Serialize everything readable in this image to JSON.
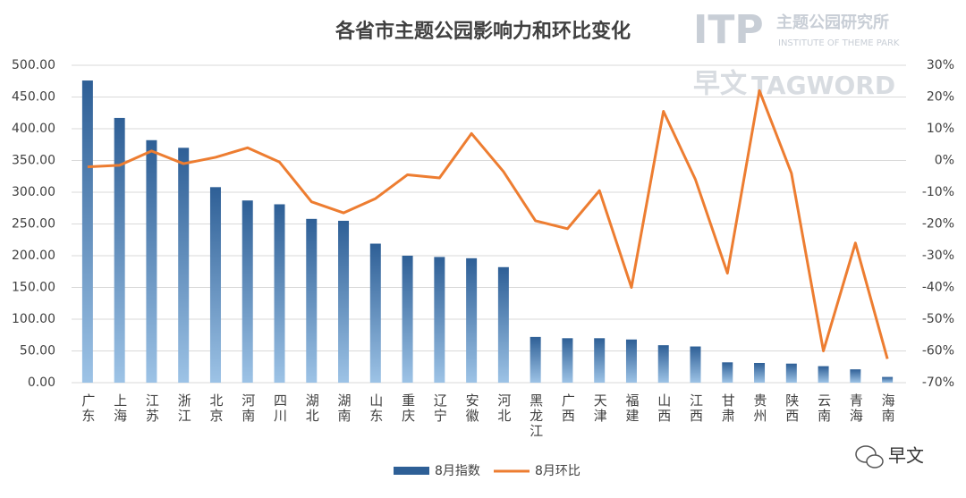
{
  "chart_data": {
    "type": "bar-line",
    "title": "各省市主题公园影响力和环比变化",
    "categories": [
      "广东",
      "上海",
      "江苏",
      "浙江",
      "北京",
      "河南",
      "四川",
      "湖北",
      "湖南",
      "山东",
      "重庆",
      "辽宁",
      "安徽",
      "河北",
      "黑龙江",
      "广西",
      "天津",
      "福建",
      "山西",
      "江西",
      "甘肃",
      "贵州",
      "陕西",
      "云南",
      "青海",
      "海南"
    ],
    "series": [
      {
        "name": "8月指数",
        "color": "#2e5f96",
        "color_light": "#9dc3e6",
        "type": "bar",
        "values": [
          476,
          417,
          382,
          370,
          308,
          287,
          281,
          258,
          255,
          219,
          200,
          198,
          196,
          182,
          72,
          70,
          70,
          68,
          59,
          57,
          32,
          31,
          30,
          26,
          21,
          9
        ]
      },
      {
        "name": "8月环比",
        "color": "#ed7d31",
        "type": "line",
        "axis": "y2",
        "values": [
          -2,
          -1.5,
          3,
          -1,
          1,
          4,
          -0.5,
          -13,
          -16.5,
          -12,
          -4.5,
          -5.5,
          8.5,
          -3.5,
          -19,
          -21.5,
          -9.5,
          -40,
          15.5,
          -6,
          -35.5,
          22,
          -4,
          -60,
          -26,
          -62.5
        ]
      }
    ],
    "ylim": [
      0,
      500
    ],
    "yticks": [
      {
        "value": 0,
        "label": "0.00"
      },
      {
        "value": 50,
        "label": "50.00"
      },
      {
        "value": 100,
        "label": "100.00"
      },
      {
        "value": 150,
        "label": "150.00"
      },
      {
        "value": 200,
        "label": "200.00"
      },
      {
        "value": 250,
        "label": "250.00"
      },
      {
        "value": 300,
        "label": "300.00"
      },
      {
        "value": 350,
        "label": "350.00"
      },
      {
        "value": 400,
        "label": "400.00"
      },
      {
        "value": 450,
        "label": "450.00"
      },
      {
        "value": 500,
        "label": "500.00"
      }
    ],
    "y2lim": [
      -70,
      30
    ],
    "y2ticks": [
      {
        "value": -70,
        "label": "-70%"
      },
      {
        "value": -60,
        "label": "-60%"
      },
      {
        "value": -50,
        "label": "-50%"
      },
      {
        "value": -40,
        "label": "-40%"
      },
      {
        "value": -30,
        "label": "-30%"
      },
      {
        "value": -20,
        "label": "-20%"
      },
      {
        "value": -10,
        "label": "-10%"
      },
      {
        "value": 0,
        "label": "0%"
      },
      {
        "value": 10,
        "label": "10%"
      },
      {
        "value": 20,
        "label": "20%"
      },
      {
        "value": 30,
        "label": "30%"
      }
    ],
    "grid": true,
    "legend": "bottom",
    "annotations": [
      "ITP",
      "主题公园研究所",
      "INSTITUTE OF THEME PARK",
      "早文",
      "TAGWORD",
      "早文"
    ]
  }
}
